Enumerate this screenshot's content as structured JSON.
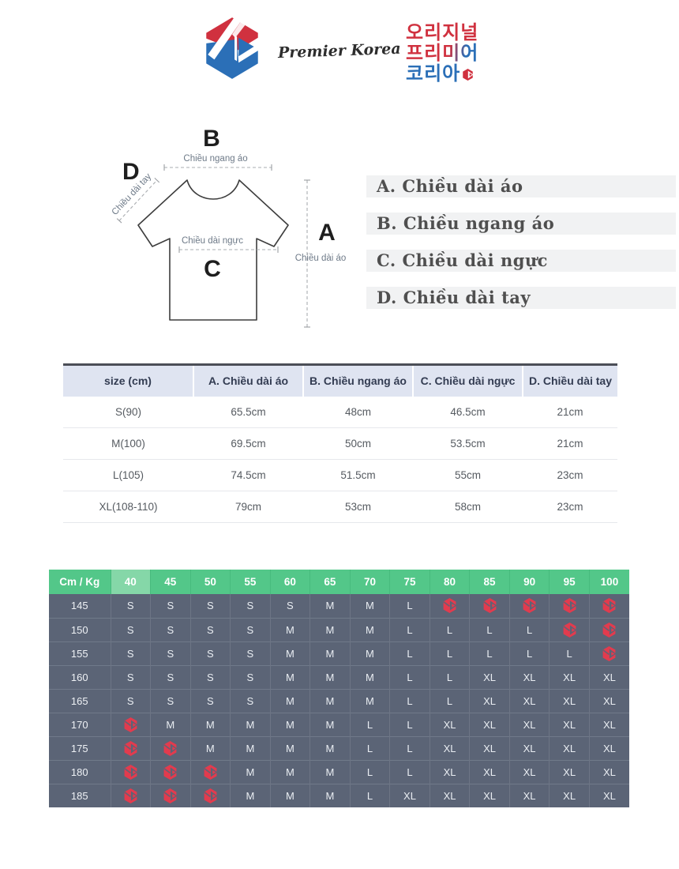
{
  "brand": {
    "script_logo_text": "Premier Korea",
    "korean_logo_lines": [
      "오리지널",
      "프리미어",
      "코리아"
    ]
  },
  "diagram": {
    "labels": {
      "a": "A",
      "b": "B",
      "c": "C",
      "d": "D"
    },
    "captions": {
      "a": "Chiều dài áo",
      "b": "Chiều ngang áo",
      "c": "Chiều dài ngực",
      "d": "Chiều dài tay"
    }
  },
  "legend": {
    "items": [
      "A. Chiều dài áo",
      "B. Chiều ngang áo",
      "C. Chiều dài ngực",
      "D. Chiều dài tay"
    ]
  },
  "size_table": {
    "headers": [
      "size (cm)",
      "A. Chiều dài áo",
      "B. Chiều ngang áo",
      "C. Chiều dài ngực",
      "D. Chiều dài tay"
    ],
    "rows": [
      [
        "S(90)",
        "65.5cm",
        "48cm",
        "46.5cm",
        "21cm"
      ],
      [
        "M(100)",
        "69.5cm",
        "50cm",
        "53.5cm",
        "21cm"
      ],
      [
        "L(105)",
        "74.5cm",
        "51.5cm",
        "55cm",
        "23cm"
      ],
      [
        "XL(108-110)",
        "79cm",
        "53cm",
        "58cm",
        "23cm"
      ]
    ]
  },
  "size_matrix": {
    "corner_label": "Cm / Kg",
    "weight_headers": [
      "40",
      "45",
      "50",
      "55",
      "60",
      "65",
      "70",
      "75",
      "80",
      "85",
      "90",
      "95",
      "100"
    ],
    "highlight_column": "40",
    "rows": [
      {
        "height": "145",
        "cells": [
          "S",
          "S",
          "S",
          "S",
          "S",
          "M",
          "M",
          "L",
          "icon",
          "icon",
          "icon",
          "icon",
          "icon"
        ]
      },
      {
        "height": "150",
        "cells": [
          "S",
          "S",
          "S",
          "S",
          "M",
          "M",
          "M",
          "L",
          "L",
          "L",
          "L",
          "icon",
          "icon"
        ]
      },
      {
        "height": "155",
        "cells": [
          "S",
          "S",
          "S",
          "S",
          "M",
          "M",
          "M",
          "L",
          "L",
          "L",
          "L",
          "L",
          "icon"
        ]
      },
      {
        "height": "160",
        "cells": [
          "S",
          "S",
          "S",
          "S",
          "M",
          "M",
          "M",
          "L",
          "L",
          "XL",
          "XL",
          "XL",
          "XL"
        ]
      },
      {
        "height": "165",
        "cells": [
          "S",
          "S",
          "S",
          "S",
          "M",
          "M",
          "M",
          "L",
          "L",
          "XL",
          "XL",
          "XL",
          "XL"
        ]
      },
      {
        "height": "170",
        "cells": [
          "icon",
          "M",
          "M",
          "M",
          "M",
          "M",
          "L",
          "L",
          "XL",
          "XL",
          "XL",
          "XL",
          "XL"
        ]
      },
      {
        "height": "175",
        "cells": [
          "icon",
          "icon",
          "M",
          "M",
          "M",
          "M",
          "L",
          "L",
          "XL",
          "XL",
          "XL",
          "XL",
          "XL"
        ]
      },
      {
        "height": "180",
        "cells": [
          "icon",
          "icon",
          "icon",
          "M",
          "M",
          "M",
          "L",
          "L",
          "XL",
          "XL",
          "XL",
          "XL",
          "XL"
        ]
      },
      {
        "height": "185",
        "cells": [
          "icon",
          "icon",
          "icon",
          "M",
          "M",
          "M",
          "L",
          "XL",
          "XL",
          "XL",
          "XL",
          "XL",
          "XL"
        ]
      }
    ]
  },
  "icons": {
    "brand_logo": "hexagon-play-brand-logo",
    "unavailable_marker": "red-hexagon-play-icon"
  },
  "colors": {
    "brand_red": "#d0313f",
    "brand_blue": "#2b6fb7",
    "matrix_header_green": "#53c789",
    "matrix_header_highlight": "#85d7a8",
    "matrix_body_slate": "#5b6476",
    "unavailable_icon_red": "#e23b4e",
    "size_table_header_bg": "#dfe4f1"
  }
}
